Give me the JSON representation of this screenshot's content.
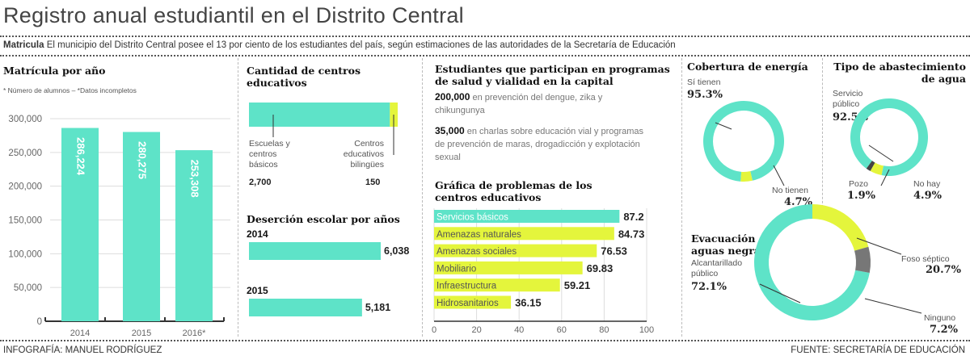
{
  "title": "Registro anual estudiantil en el Distrito Central",
  "lead": {
    "bold": "Matricula",
    "text": "El municipio del Distrito Central posee el 13 por ciento de los estudiantes del país, según estimaciones de las autoridades de la Secretaría de Educación"
  },
  "colors": {
    "teal": "#5ee3c8",
    "yellow": "#e4f53c",
    "gray": "#777777"
  },
  "footer": {
    "left": "INFOGRAFÍA: MANUEL RODRÍGUEZ",
    "right": "FUENTE: SECRETARÍA DE EDUCACIÓN"
  },
  "chart_data": [
    {
      "type": "bar",
      "id": "matricula",
      "title": "Matrícula por año",
      "subtitle": "* Número de alumnos – *Datos incompletos",
      "categories": [
        "2014",
        "2015",
        "2016*"
      ],
      "values": [
        286224,
        280275,
        253308
      ],
      "value_labels": [
        "286,224",
        "280,275",
        "253,308"
      ],
      "ylim": [
        0,
        300000
      ],
      "yticks": [
        "0",
        "50,000",
        "100,000",
        "150,000",
        "200,000",
        "250,000",
        "300,000"
      ],
      "grid": true
    },
    {
      "type": "bar",
      "id": "centros",
      "title": "Cantidad de centros educativos",
      "stacked": true,
      "series": [
        {
          "name": "Escuelas y centros básicos",
          "value": 2700,
          "value_label": "2,700"
        },
        {
          "name": "Centros educativos bilingües",
          "value": 150,
          "value_label": "150"
        }
      ]
    },
    {
      "type": "bar",
      "id": "desercion",
      "title": "Deserción escolar por años",
      "categories": [
        "2014",
        "2015"
      ],
      "values": [
        6038,
        5181
      ],
      "value_labels": [
        "6,038",
        "5,181"
      ]
    },
    {
      "type": "bar",
      "id": "problemas",
      "title": "Gráfica de problemas de los centros educativos",
      "orientation": "horizontal",
      "categories": [
        "Servicios básicos",
        "Amenazas naturales",
        "Amenazas sociales",
        "Mobiliario",
        "Infraestructura",
        "Hidrosanitarios"
      ],
      "values": [
        87.2,
        84.73,
        76.53,
        69.83,
        59.21,
        36.15
      ],
      "value_labels": [
        "87.2",
        "84.73",
        "76.53",
        "69.83",
        "59.21",
        "36.15"
      ],
      "xlim": [
        0,
        100
      ],
      "xticks": [
        "0",
        "20",
        "40",
        "60",
        "80",
        "100"
      ]
    },
    {
      "type": "pie",
      "id": "energia",
      "title": "Cobertura de energía",
      "donut": true,
      "slices": [
        {
          "name": "Sí tienen",
          "value": 95.3,
          "label": "95.3%"
        },
        {
          "name": "No tienen",
          "value": 4.7,
          "label": "4.7%"
        }
      ]
    },
    {
      "type": "pie",
      "id": "agua",
      "title": "Tipo de abastecimiento de agua",
      "donut": true,
      "slices": [
        {
          "name": "Servicio público",
          "value": 92.5,
          "label": "92.5%"
        },
        {
          "name": "No hay",
          "value": 4.9,
          "label": "4.9%"
        },
        {
          "name": "Pozo",
          "value": 1.9,
          "label": "1.9%"
        }
      ]
    },
    {
      "type": "pie",
      "id": "evacuacion",
      "title": "Evacuación de aguas negras",
      "donut": true,
      "slices": [
        {
          "name": "Alcantarillado público",
          "value": 72.1,
          "label": "72.1%"
        },
        {
          "name": "Foso séptico",
          "value": 20.7,
          "label": "20.7%"
        },
        {
          "name": "Ninguno",
          "value": 7.2,
          "label": "7.2%"
        }
      ]
    }
  ],
  "salud": {
    "title": "Estudiantes que participan en programas de salud y vialidad en la capital",
    "items": [
      {
        "num": "200,000",
        "text": "en prevención del dengue, zika y chikungunya"
      },
      {
        "num": "35,000",
        "text": "en charlas sobre educación vial y programas de prevención de maras, drogadicción y explotación sexual"
      }
    ]
  }
}
